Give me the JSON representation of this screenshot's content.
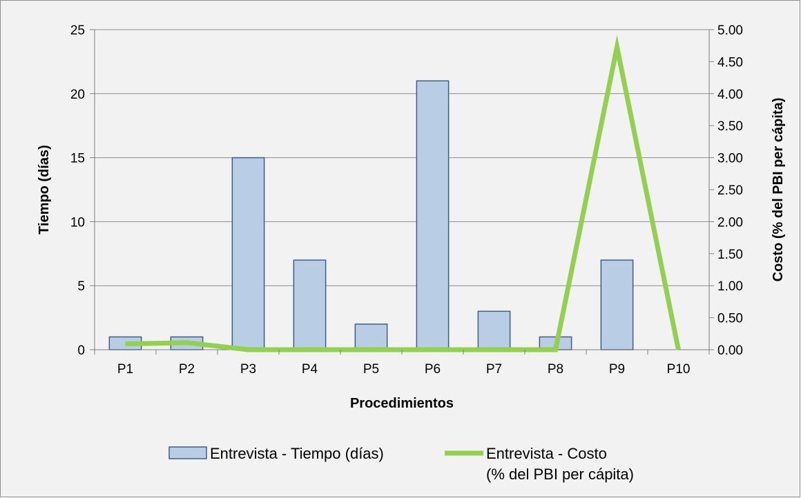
{
  "chart_data": {
    "type": "bar",
    "categories": [
      "P1",
      "P2",
      "P3",
      "P4",
      "P5",
      "P6",
      "P7",
      "P8",
      "P9",
      "P10"
    ],
    "series": [
      {
        "name": "Entrevista - Tiempo (días)",
        "type": "bar",
        "axis": "left",
        "values": [
          1,
          1,
          15,
          7,
          2,
          21,
          3,
          1,
          7,
          null
        ],
        "color": "#b9cde5",
        "border_color": "#3a5f8a"
      },
      {
        "name": "Entrevista - Costo (% del PBI per cápita)",
        "name_lines": [
          "Entrevista - Costo",
          "(% del PBI per cápita)"
        ],
        "type": "line",
        "axis": "right",
        "values": [
          0.09,
          0.11,
          0.0,
          0.0,
          0.0,
          0.0,
          0.0,
          0.0,
          4.73,
          0.0
        ],
        "color": "#92d050"
      }
    ],
    "xlabel": "Procedimientos",
    "ylabel": "Tiempo (días)",
    "y2label": "Costo (% del PBI per cápita)",
    "ylim": [
      0,
      25
    ],
    "yticks": [
      "0",
      "5",
      "10",
      "15",
      "20",
      "25"
    ],
    "y2lim": [
      0,
      5
    ],
    "y2ticks": [
      "0.00",
      "0.50",
      "1.00",
      "1.50",
      "2.00",
      "2.50",
      "3.00",
      "3.50",
      "4.00",
      "4.50",
      "5.00"
    ],
    "grid": true,
    "legend_position": "bottom"
  }
}
